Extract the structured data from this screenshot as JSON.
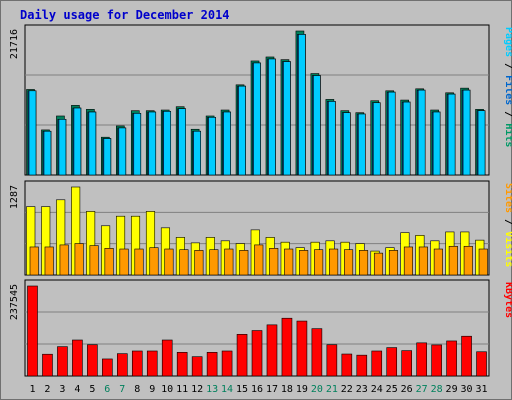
{
  "chart_data": [
    {
      "type": "bar",
      "title": "Daily usage for December 2014",
      "ymax_label": "21716",
      "categories": [
        "1",
        "2",
        "3",
        "4",
        "5",
        "6",
        "7",
        "8",
        "9",
        "10",
        "11",
        "12",
        "13",
        "14",
        "15",
        "16",
        "17",
        "18",
        "19",
        "20",
        "21",
        "22",
        "23",
        "24",
        "25",
        "26",
        "27",
        "28",
        "29",
        "30",
        "31"
      ],
      "weekend_days": [
        "6",
        "7",
        "13",
        "14",
        "20",
        "21",
        "27",
        "28"
      ],
      "ylabel_parts": [
        {
          "text": "Pages",
          "color": "#00ccff"
        },
        {
          "text": " / ",
          "color": "#000000"
        },
        {
          "text": "Files",
          "color": "#0066cc"
        },
        {
          "text": " / ",
          "color": "#000000"
        },
        {
          "text": "Hits",
          "color": "#009966"
        }
      ],
      "series": [
        {
          "name": "Hits",
          "color": "#00805c",
          "values": [
            12900,
            6800,
            8900,
            10500,
            9900,
            5700,
            7400,
            9700,
            9700,
            9800,
            10300,
            6900,
            8900,
            9800,
            13600,
            17200,
            17800,
            17400,
            21716,
            15300,
            11400,
            9700,
            9400,
            11200,
            12700,
            11300,
            13000,
            9800,
            12400,
            13100,
            9900
          ]
        },
        {
          "name": "Files",
          "color": "#0066cc",
          "values": [
            12700,
            6600,
            8400,
            10100,
            9500,
            5500,
            7100,
            9300,
            9500,
            9600,
            10000,
            6600,
            8700,
            9500,
            13400,
            16900,
            17500,
            17100,
            21200,
            15000,
            11100,
            9400,
            9200,
            10900,
            12500,
            11000,
            12800,
            9500,
            12200,
            12800,
            9700
          ]
        },
        {
          "name": "Pages",
          "color": "#00ccff",
          "values": [
            12700,
            6600,
            8400,
            10100,
            9500,
            5500,
            7100,
            9300,
            9500,
            9600,
            10000,
            6600,
            8700,
            9500,
            13400,
            16900,
            17500,
            17100,
            21200,
            15000,
            11100,
            9400,
            9200,
            10900,
            12500,
            11000,
            12800,
            9500,
            12200,
            12800,
            9700
          ]
        }
      ]
    },
    {
      "type": "bar",
      "ymax_label": "1287",
      "ylabel_parts": [
        {
          "text": "Sites",
          "color": "#ff9900"
        },
        {
          "text": " / ",
          "color": "#000000"
        },
        {
          "text": "Visits",
          "color": "#ffff00"
        }
      ],
      "series": [
        {
          "name": "Visits",
          "color": "#ffff00",
          "values": [
            1000,
            1000,
            1100,
            1287,
            930,
            720,
            860,
            860,
            930,
            690,
            550,
            470,
            550,
            500,
            460,
            660,
            550,
            480,
            400,
            480,
            500,
            480,
            460,
            350,
            400,
            620,
            580,
            500,
            630,
            630,
            510
          ]
        },
        {
          "name": "Sites",
          "color": "#ff9900",
          "values": [
            410,
            410,
            440,
            460,
            430,
            390,
            380,
            380,
            400,
            380,
            370,
            360,
            370,
            380,
            360,
            440,
            390,
            380,
            360,
            370,
            380,
            370,
            360,
            320,
            360,
            410,
            410,
            380,
            420,
            420,
            380
          ]
        }
      ]
    },
    {
      "type": "bar",
      "ymax_label": "237545",
      "ylabel_parts": [
        {
          "text": "KBytes",
          "color": "#ff0000"
        }
      ],
      "series": [
        {
          "name": "KBytes",
          "color": "#ff0000",
          "values": [
            237545,
            57500,
            77500,
            95000,
            82500,
            45000,
            59000,
            66000,
            66000,
            95000,
            62500,
            51000,
            62500,
            66000,
            110000,
            120000,
            135000,
            152500,
            145000,
            125000,
            82500,
            58000,
            55000,
            66000,
            75000,
            67000,
            87500,
            82000,
            92500,
            105000,
            64000
          ]
        }
      ]
    }
  ]
}
